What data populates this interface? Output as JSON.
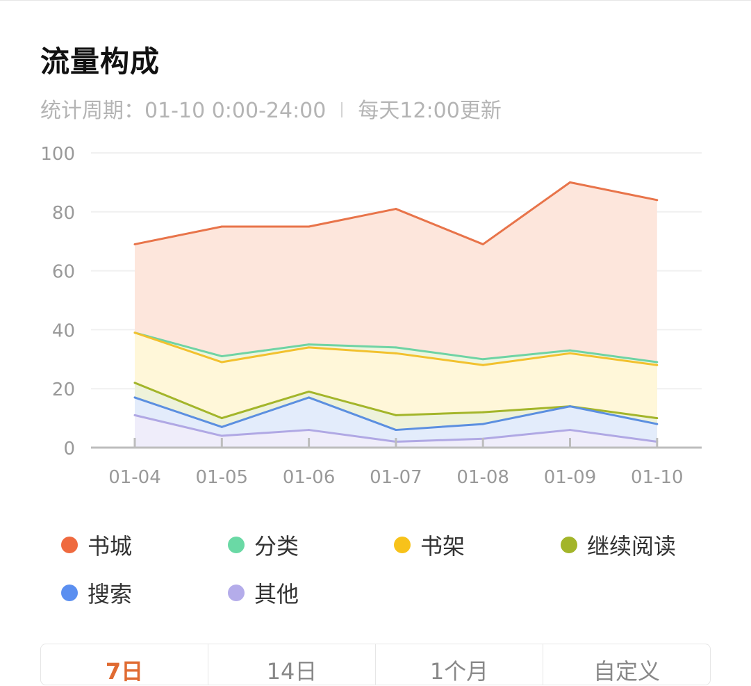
{
  "page": {
    "title": "流量构成",
    "subtitle_period": "统计周期：01-10 0:00-24:00",
    "subtitle_update": "每天12:00更新"
  },
  "chart_data": {
    "type": "area",
    "x": [
      "01-04",
      "01-05",
      "01-06",
      "01-07",
      "01-08",
      "01-09",
      "01-10"
    ],
    "ylim": [
      0,
      100
    ],
    "yticks": [
      0,
      20,
      40,
      60,
      80,
      100
    ],
    "grid": true,
    "legend_position": "bottom",
    "series": [
      {
        "name": "书城",
        "color": "#e8744a",
        "fill": "#fde6dc",
        "values": [
          69,
          75,
          75,
          81,
          69,
          90,
          84
        ]
      },
      {
        "name": "分类",
        "color": "#6fd3a4",
        "fill": "#eef6df",
        "values": [
          39,
          31,
          35,
          34,
          30,
          33,
          29
        ]
      },
      {
        "name": "书架",
        "color": "#f2c12e",
        "fill": "#fff7d9",
        "values": [
          39,
          29,
          34,
          32,
          28,
          32,
          28
        ]
      },
      {
        "name": "继续阅读",
        "color": "#a3b52a",
        "fill": "#eef2da",
        "values": [
          22,
          10,
          19,
          11,
          12,
          14,
          10
        ]
      },
      {
        "name": "搜索",
        "color": "#5b8fe0",
        "fill": "#e3ecfb",
        "values": [
          17,
          7,
          17,
          6,
          8,
          14,
          8
        ]
      },
      {
        "name": "其他",
        "color": "#b0a8e4",
        "fill": "#efedfa",
        "values": [
          11,
          4,
          6,
          2,
          3,
          6,
          2
        ]
      }
    ]
  },
  "legend": [
    {
      "label": "书城",
      "color": "#ef6a3f"
    },
    {
      "label": "分类",
      "color": "#6ad9a5"
    },
    {
      "label": "书架",
      "color": "#f7c21a"
    },
    {
      "label": "继续阅读",
      "color": "#a3b52a"
    },
    {
      "label": "搜索",
      "color": "#5b8ff0"
    },
    {
      "label": "其他",
      "color": "#b4acea"
    }
  ],
  "tabs": [
    {
      "label": "7日",
      "active": true
    },
    {
      "label": "14日",
      "active": false
    },
    {
      "label": "1个月",
      "active": false
    },
    {
      "label": "自定义",
      "active": false
    }
  ]
}
